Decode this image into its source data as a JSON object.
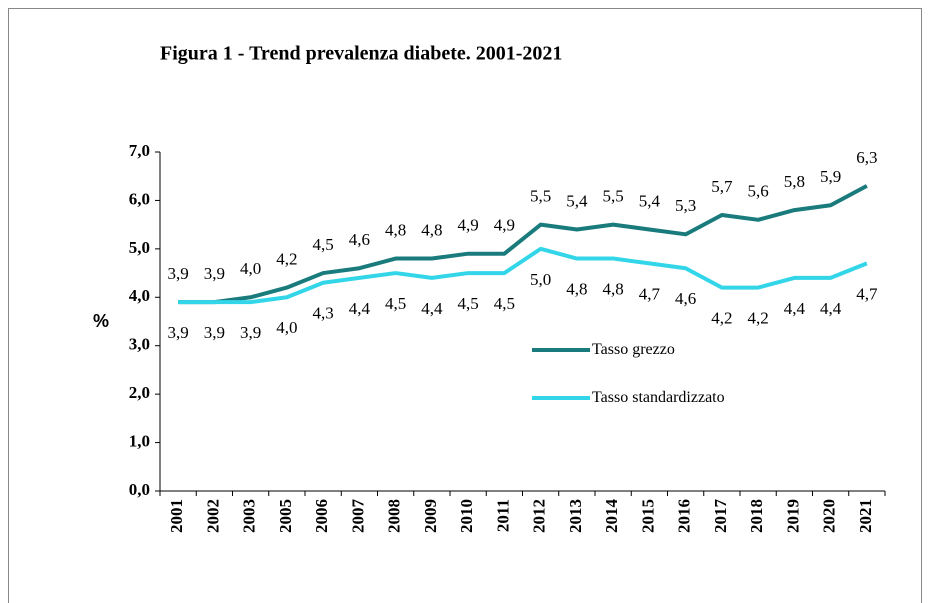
{
  "chart_data": {
    "type": "line",
    "title": "Figura 1 - Trend prevalenza diabete. 2001-2021",
    "y_label": "%",
    "categories": [
      "2001",
      "2002",
      "2003",
      "2005",
      "2006",
      "2007",
      "2008",
      "2009",
      "2010",
      "2011",
      "2012",
      "2013",
      "2014",
      "2015",
      "2016",
      "2017",
      "2018",
      "2019",
      "2020",
      "2021"
    ],
    "series": [
      {
        "name": "Tasso grezzo",
        "color": "#1a7b7d",
        "values": [
          3.9,
          3.9,
          4.0,
          4.2,
          4.5,
          4.6,
          4.8,
          4.8,
          4.9,
          4.9,
          5.5,
          5.4,
          5.5,
          5.4,
          5.3,
          5.7,
          5.6,
          5.8,
          5.9,
          6.3
        ],
        "value_labels": [
          "3,9",
          "3,9",
          "4,0",
          "4,2",
          "4,5",
          "4,6",
          "4,8",
          "4,8",
          "4,9",
          "4,9",
          "5,5",
          "5,4",
          "5,5",
          "5,4",
          "5,3",
          "5,7",
          "5,6",
          "5,8",
          "5,9",
          "6,3"
        ]
      },
      {
        "name": "Tasso standardizzato",
        "color": "#33d6e8",
        "values": [
          3.9,
          3.9,
          3.9,
          4.0,
          4.3,
          4.4,
          4.5,
          4.4,
          4.5,
          4.5,
          5.0,
          4.8,
          4.8,
          4.7,
          4.6,
          4.2,
          4.2,
          4.4,
          4.4,
          4.7
        ],
        "value_labels": [
          "3,9",
          "3,9",
          "3,9",
          "4,0",
          "4,3",
          "4,4",
          "4,5",
          "4,4",
          "4,5",
          "4,5",
          "5,0",
          "4,8",
          "4,8",
          "4,7",
          "4,6",
          "4,2",
          "4,2",
          "4,4",
          "4,4",
          "4,7"
        ]
      }
    ],
    "ylim": [
      0,
      7
    ],
    "yticks": [
      {
        "value": 0,
        "label": "0,0"
      },
      {
        "value": 1,
        "label": "1,0"
      },
      {
        "value": 2,
        "label": "2,0"
      },
      {
        "value": 3,
        "label": "3,0"
      },
      {
        "value": 4,
        "label": "4,0"
      },
      {
        "value": 5,
        "label": "5,0"
      },
      {
        "value": 6,
        "label": "6,0"
      },
      {
        "value": 7,
        "label": "7,0"
      }
    ],
    "grid": false
  }
}
